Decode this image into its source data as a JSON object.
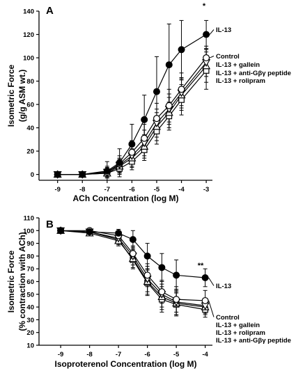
{
  "chart_data": [
    {
      "type": "line",
      "panel": "A",
      "xlabel": "ACh Concentration (log M)",
      "ylabel_lines": [
        "Isometric Force",
        "(g/g ASM wt.)"
      ],
      "xlim": [
        -9.75,
        -2.75
      ],
      "ylim": [
        -5,
        140
      ],
      "xticks": [
        -9,
        -8,
        -7,
        -6,
        -5,
        -4,
        -3
      ],
      "yticks": [
        0,
        20,
        40,
        60,
        80,
        100,
        120,
        140
      ],
      "series": [
        {
          "name": "IL-13",
          "marker": "filled-circle",
          "x": [
            -9,
            -8,
            -7,
            -6.5,
            -6,
            -5.5,
            -5,
            -4.5,
            -4,
            -3
          ],
          "y": [
            0,
            0,
            3,
            10,
            26,
            47,
            71,
            94,
            107,
            120
          ],
          "err": [
            2,
            2,
            8,
            12,
            17,
            21,
            30,
            35,
            25,
            12
          ]
        },
        {
          "name": "Control",
          "marker": "open-circle",
          "x": [
            -9,
            -8,
            -7,
            -6.5,
            -6,
            -5.5,
            -5,
            -4.5,
            -4,
            -3
          ],
          "y": [
            0,
            0,
            2,
            9,
            19,
            31,
            48,
            59,
            73,
            100
          ],
          "err": [
            1,
            1,
            5,
            7,
            10,
            12,
            13,
            14,
            14,
            10
          ]
        },
        {
          "name": "IL-13 + gallein",
          "marker": "open-triangle-down",
          "x": [
            -9,
            -8,
            -7,
            -6.5,
            -6,
            -5.5,
            -5,
            -4.5,
            -4,
            -3
          ],
          "y": [
            0,
            0,
            2,
            8,
            16,
            27,
            44,
            56,
            70,
            96
          ],
          "err": [
            1,
            1,
            4,
            6,
            9,
            11,
            12,
            13,
            13,
            12
          ]
        },
        {
          "name": "IL-13 + anti-Gβγ peptide",
          "marker": "open-triangle-up",
          "x": [
            -9,
            -8,
            -7,
            -6.5,
            -6,
            -5.5,
            -5,
            -4.5,
            -4,
            -3
          ],
          "y": [
            0,
            0,
            1,
            7,
            14,
            24,
            41,
            53,
            68,
            93
          ],
          "err": [
            1,
            1,
            4,
            6,
            8,
            10,
            12,
            13,
            13,
            14
          ]
        },
        {
          "name": "IL-13 + rolipram",
          "marker": "open-square",
          "x": [
            -9,
            -8,
            -7,
            -6.5,
            -6,
            -5.5,
            -5,
            -4.5,
            -4,
            -3
          ],
          "y": [
            0,
            0,
            1,
            5,
            11,
            21,
            37,
            50,
            64,
            89
          ],
          "err": [
            1,
            1,
            3,
            5,
            7,
            9,
            11,
            12,
            13,
            16
          ]
        }
      ],
      "annotation": "*"
    },
    {
      "type": "line",
      "panel": "B",
      "xlabel": "Isoproterenol  Concentration (log M)",
      "ylabel_lines": [
        "Isometric Force",
        "(% contraction with ACh)"
      ],
      "xlim": [
        -9.75,
        -3.75
      ],
      "ylim": [
        10,
        110
      ],
      "xticks": [
        -9,
        -8,
        -7,
        -6,
        -5,
        -4
      ],
      "yticks": [
        10,
        20,
        30,
        40,
        50,
        60,
        70,
        80,
        90,
        100,
        110
      ],
      "series": [
        {
          "name": "IL-13",
          "marker": "filled-circle",
          "x": [
            -9,
            -8,
            -7,
            -6.5,
            -6,
            -5.5,
            -5,
            -4
          ],
          "y": [
            100,
            99,
            98,
            93,
            80,
            71,
            65,
            63
          ],
          "err": [
            1,
            2,
            3,
            7,
            10,
            11,
            12,
            7
          ]
        },
        {
          "name": "Control",
          "marker": "open-circle",
          "x": [
            -9,
            -8,
            -7,
            -6.5,
            -6,
            -5.5,
            -5,
            -4
          ],
          "y": [
            100,
            100,
            96,
            82,
            65,
            52,
            46,
            45
          ],
          "err": [
            1,
            1,
            3,
            6,
            9,
            9,
            10,
            8
          ]
        },
        {
          "name": "IL-13 + gallein",
          "marker": "open-triangle-down",
          "x": [
            -9,
            -8,
            -7,
            -6.5,
            -6,
            -5.5,
            -5,
            -4
          ],
          "y": [
            100,
            99,
            94,
            80,
            62,
            50,
            44,
            41
          ],
          "err": [
            1,
            1,
            3,
            7,
            10,
            10,
            10,
            6
          ]
        },
        {
          "name": "IL-13 + rolipram",
          "marker": "open-triangle-up",
          "x": [
            -9,
            -8,
            -7,
            -6.5,
            -6,
            -5.5,
            -5,
            -4
          ],
          "y": [
            100,
            98,
            92,
            78,
            60,
            48,
            43,
            40
          ],
          "err": [
            1,
            1,
            4,
            7,
            10,
            10,
            9,
            6
          ]
        },
        {
          "name": "IL-13 + anti-Gβγ peptide",
          "marker": "open-square",
          "x": [
            -9,
            -8,
            -7,
            -6.5,
            -6,
            -5.5,
            -5,
            -4
          ],
          "y": [
            100,
            99,
            93,
            77,
            59,
            46,
            42,
            38
          ],
          "err": [
            1,
            1,
            4,
            7,
            10,
            10,
            9,
            6
          ]
        }
      ],
      "annotation": "**"
    }
  ]
}
